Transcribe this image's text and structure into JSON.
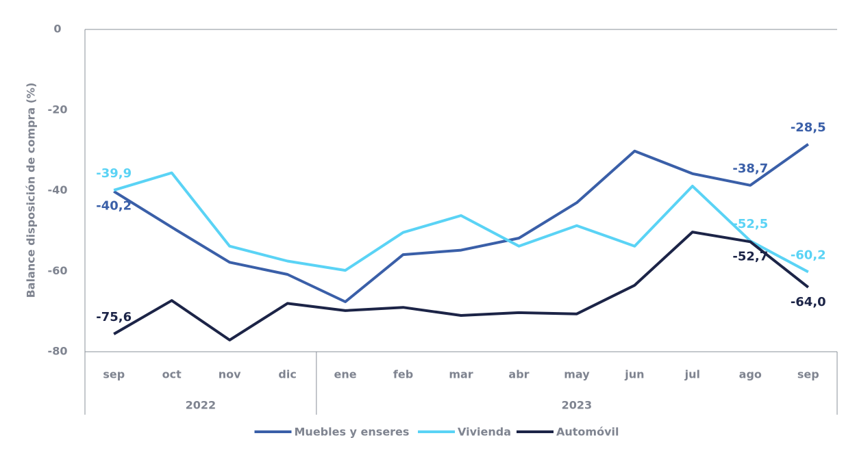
{
  "chart_data": {
    "type": "line",
    "y_axis_label": "Balance disposición de compra (%)",
    "categories": [
      "sep",
      "oct",
      "nov",
      "dic",
      "ene",
      "feb",
      "mar",
      "abr",
      "may",
      "jun",
      "jul",
      "ago",
      "sep"
    ],
    "category_groups": [
      {
        "label": "2022",
        "span": 4
      },
      {
        "label": "2023",
        "span": 9
      }
    ],
    "ylim": [
      -80,
      0
    ],
    "yticks": [
      0,
      -20,
      -40,
      -60,
      -80
    ],
    "series": [
      {
        "name": "Muebles y enseres",
        "color": "#3a5fa8",
        "values": [
          -40.2,
          -49.1,
          -57.8,
          -60.8,
          -67.6,
          -55.9,
          -54.8,
          -51.8,
          -43.0,
          -30.2,
          -35.8,
          -38.7,
          -28.5
        ],
        "value_labels": [
          "-40,2",
          null,
          null,
          null,
          null,
          null,
          null,
          null,
          null,
          null,
          null,
          "-38,7",
          "-28,5"
        ]
      },
      {
        "name": "Vivienda",
        "color": "#5ad3f5",
        "values": [
          -39.9,
          -35.6,
          -53.8,
          -57.5,
          -59.8,
          -50.4,
          -46.2,
          -53.8,
          -48.7,
          -53.8,
          -38.9,
          -52.5,
          -60.2
        ],
        "value_labels": [
          "-39,9",
          null,
          null,
          null,
          null,
          null,
          null,
          null,
          null,
          null,
          null,
          "-52,5",
          "-60,2"
        ]
      },
      {
        "name": "Automóvil",
        "color": "#1c2447",
        "values": [
          -75.6,
          -67.3,
          -77.1,
          -68.0,
          -69.8,
          -69.0,
          -71.0,
          -70.3,
          -70.6,
          -63.5,
          -50.3,
          -52.7,
          -64.0
        ],
        "value_labels": [
          "-75,6",
          null,
          null,
          null,
          null,
          null,
          null,
          null,
          null,
          null,
          null,
          "-52,7",
          "-64,0"
        ]
      }
    ]
  }
}
